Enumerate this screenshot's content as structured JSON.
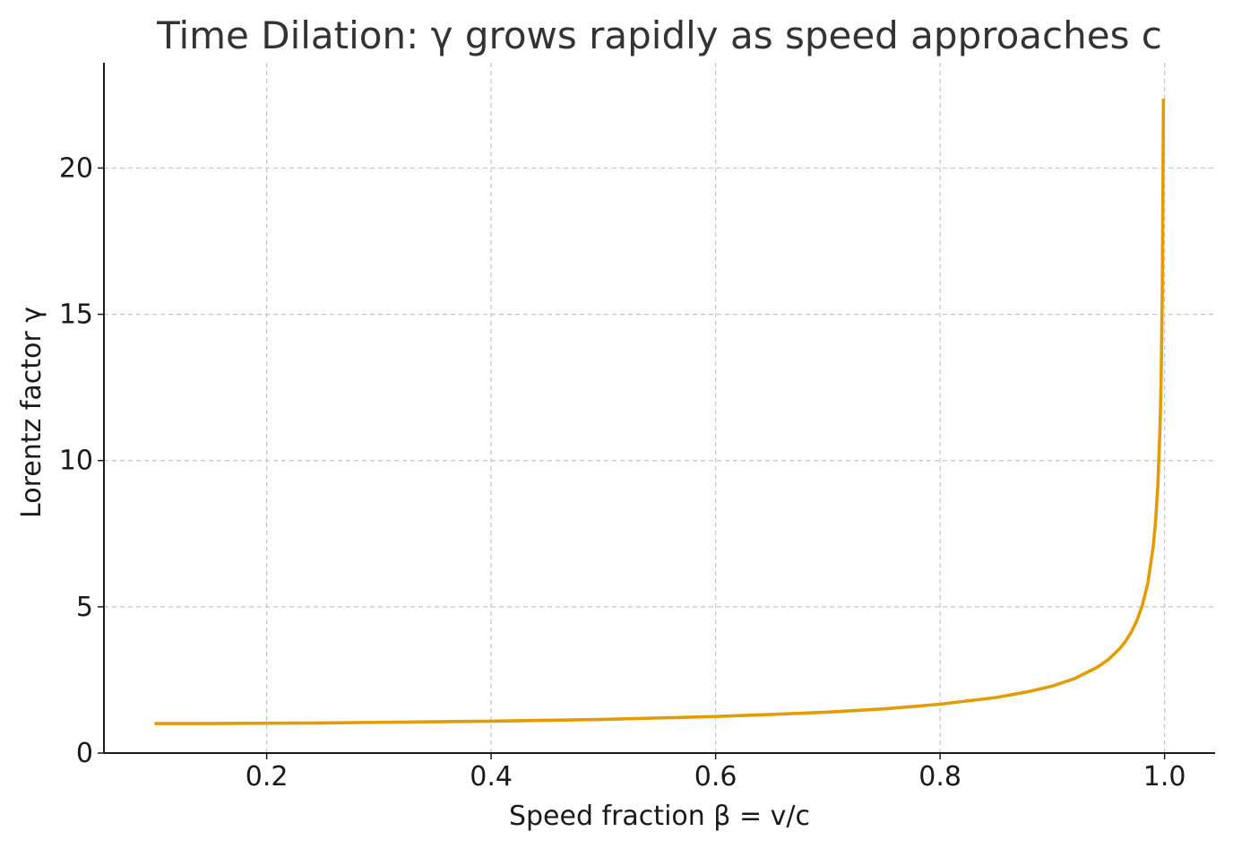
{
  "chart_data": {
    "type": "line",
    "title": "Time Dilation: γ grows rapidly as speed approaches c",
    "xlabel": "Speed fraction β = v/c",
    "ylabel": "Lorentz factor γ",
    "xlim": [
      0.055,
      1.045
    ],
    "ylim": [
      0,
      23.6
    ],
    "xticks": [
      0.2,
      0.4,
      0.6,
      0.8,
      1.0
    ],
    "xtick_labels": [
      "0.2",
      "0.4",
      "0.6",
      "0.8",
      "1.0"
    ],
    "yticks": [
      0,
      5,
      10,
      15,
      20
    ],
    "ytick_labels": [
      "0",
      "5",
      "10",
      "15",
      "20"
    ],
    "grid": true,
    "legend": "none",
    "series": [
      {
        "color": "#e39c06",
        "x": [
          0.1,
          0.15,
          0.2,
          0.25,
          0.3,
          0.35,
          0.4,
          0.45,
          0.5,
          0.55,
          0.6,
          0.65,
          0.7,
          0.75,
          0.8,
          0.85,
          0.88,
          0.9,
          0.92,
          0.94,
          0.95,
          0.96,
          0.965,
          0.97,
          0.975,
          0.98,
          0.985,
          0.99,
          0.992,
          0.994,
          0.996,
          0.997,
          0.998,
          0.999
        ],
        "y": [
          1.01,
          1.01,
          1.02,
          1.03,
          1.05,
          1.07,
          1.09,
          1.12,
          1.15,
          1.2,
          1.25,
          1.32,
          1.4,
          1.51,
          1.67,
          1.9,
          2.11,
          2.29,
          2.55,
          2.93,
          3.2,
          3.57,
          3.81,
          4.11,
          4.5,
          5.03,
          5.79,
          7.09,
          7.93,
          9.14,
          11.19,
          12.92,
          15.82,
          22.37
        ]
      }
    ]
  }
}
